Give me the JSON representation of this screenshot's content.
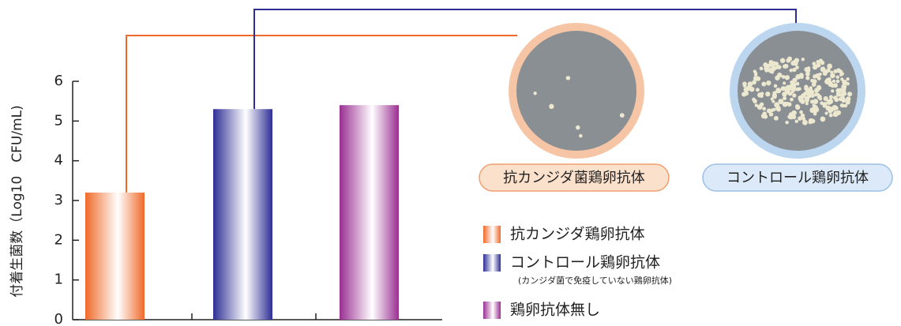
{
  "chart_data": {
    "type": "bar",
    "y_label": "付着生菌数（Log10　CFU/mL)",
    "categories": [
      "抗カンジダ鶏卵抗体",
      "コントロール鶏卵抗体",
      "鶏卵抗体無し"
    ],
    "values": [
      3.2,
      5.3,
      5.4
    ],
    "colors": [
      "#ef6a2a",
      "#2e2e96",
      "#9a2f92"
    ],
    "legend_note": "(カンジダ菌で免疫していない鶏卵抗体)",
    "ylim": [
      0,
      6
    ],
    "yticks": [
      0,
      1,
      2,
      3,
      4,
      5,
      6
    ],
    "photo_labels": [
      "抗カンジダ菌鶏卵抗体",
      "コントロール鶏卵抗体"
    ]
  }
}
